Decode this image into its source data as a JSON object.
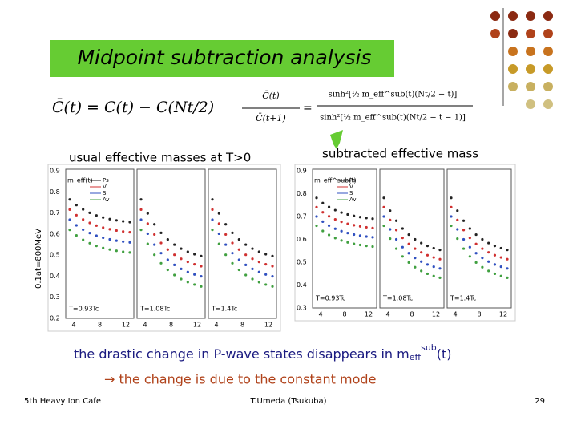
{
  "header": {
    "title": "Midpoint subtraction analysis"
  },
  "formulas": {
    "eq1": "C̄(t) = C(t) − C(Nt/2)",
    "eq2_lhs_num": "C̄(t)",
    "eq2_lhs_den": "C̄(t+1)",
    "eq2_rhs_num": "sinh²[½ m_eff^sub(t)(Nt/2 − t)]",
    "eq2_rhs_den": "sinh²[½ m_eff^sub(t)(Nt/2 − t − 1)]"
  },
  "labels": {
    "left": "usual effective masses at T>0",
    "right": "subtracted effective mass",
    "side": "0.1at=800MeV"
  },
  "left_plot": {
    "ylabel": "m_eff(t)",
    "yticks": [
      "0.9",
      "0.8",
      "0.7",
      "0.6",
      "0.5",
      "0.4",
      "0.3",
      "0.2"
    ],
    "xticks": [
      "4",
      "8",
      "12"
    ],
    "legend": [
      "Ps",
      "V",
      "S",
      "Av"
    ],
    "panels": [
      "T=0.93Tc",
      "T=1.08Tc",
      "T=1.4Tc"
    ]
  },
  "right_plot": {
    "ylabel": "m_eff^sub(t)",
    "yticks": [
      "0.9",
      "0.8",
      "0.7",
      "0.6",
      "0.5",
      "0.4",
      "0.3"
    ],
    "xticks": [
      "4",
      "8",
      "12"
    ],
    "legend": [
      "Ps",
      "V",
      "S",
      "Av"
    ],
    "panels": [
      "T=0.93Tc",
      "T=1.08Tc",
      "T=1.4Tc"
    ]
  },
  "body": {
    "line1": "the drastic change in P-wave states disappears in m",
    "line1_sub": "eff",
    "line1_sup": "sub",
    "line1_end": "(t)",
    "line2": "→ the change is due to the constant mode"
  },
  "footer": {
    "left": "5th Heavy Ion Cafe",
    "center": "T.Umeda (Tsukuba)",
    "page": "29"
  }
}
